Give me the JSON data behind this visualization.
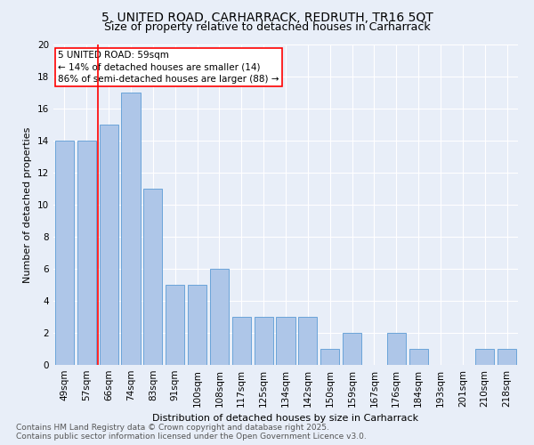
{
  "title1": "5, UNITED ROAD, CARHARRACK, REDRUTH, TR16 5QT",
  "title2": "Size of property relative to detached houses in Carharrack",
  "xlabel": "Distribution of detached houses by size in Carharrack",
  "ylabel": "Number of detached properties",
  "categories": [
    "49sqm",
    "57sqm",
    "66sqm",
    "74sqm",
    "83sqm",
    "91sqm",
    "100sqm",
    "108sqm",
    "117sqm",
    "125sqm",
    "134sqm",
    "142sqm",
    "150sqm",
    "159sqm",
    "167sqm",
    "176sqm",
    "184sqm",
    "193sqm",
    "201sqm",
    "210sqm",
    "218sqm"
  ],
  "values": [
    14,
    14,
    15,
    17,
    11,
    5,
    5,
    6,
    3,
    3,
    3,
    3,
    1,
    2,
    0,
    2,
    1,
    0,
    0,
    1,
    1
  ],
  "bar_color": "#aec6e8",
  "bar_edge_color": "#5b9bd5",
  "annotation_text": "5 UNITED ROAD: 59sqm\n← 14% of detached houses are smaller (14)\n86% of semi-detached houses are larger (88) →",
  "annotation_box_color": "white",
  "annotation_box_edge_color": "red",
  "vline_color": "red",
  "vline_x": 1.5,
  "ylim": [
    0,
    20
  ],
  "yticks": [
    0,
    2,
    4,
    6,
    8,
    10,
    12,
    14,
    16,
    18,
    20
  ],
  "footer": "Contains HM Land Registry data © Crown copyright and database right 2025.\nContains public sector information licensed under the Open Government Licence v3.0.",
  "background_color": "#e8eef8",
  "grid_color": "#ffffff",
  "title_fontsize": 10,
  "subtitle_fontsize": 9,
  "axis_label_fontsize": 8,
  "tick_fontsize": 7.5,
  "footer_fontsize": 6.5,
  "annotation_fontsize": 7.5
}
